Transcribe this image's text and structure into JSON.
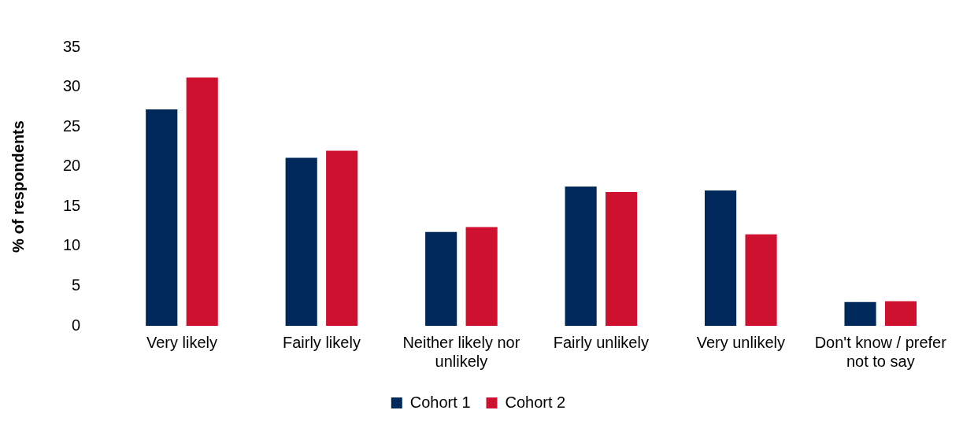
{
  "chart_data": {
    "type": "bar",
    "ylabel": "% of respondents",
    "categories": [
      "Very likely",
      "Fairly likely",
      "Neither likely nor unlikely",
      "Fairly unlikely",
      "Very unlikely",
      "Don't know / prefer not to say"
    ],
    "series": [
      {
        "name": "Cohort 1",
        "color": "#00285a",
        "values": [
          27.2,
          21.1,
          11.8,
          17.5,
          17.0,
          3.0
        ]
      },
      {
        "name": "Cohort 2",
        "color": "#cf1130",
        "values": [
          31.2,
          22.0,
          12.4,
          16.8,
          11.5,
          3.1
        ]
      }
    ],
    "ylim": [
      0,
      35
    ],
    "yticks": [
      0,
      5,
      10,
      15,
      20,
      25,
      30,
      35
    ],
    "grid": false,
    "legend": "bottom"
  }
}
